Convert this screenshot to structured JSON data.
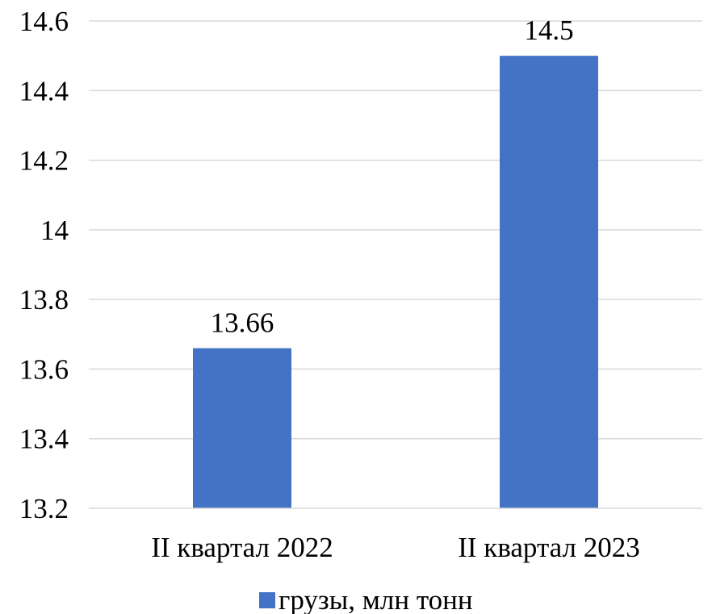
{
  "chart_data": {
    "type": "bar",
    "categories": [
      "II квартал 2022",
      "II квартал 2023"
    ],
    "series": [
      {
        "name": "грузы, млн тонн",
        "values": [
          13.66,
          14.5
        ],
        "color": "#4472C4"
      }
    ],
    "data_labels": [
      "13.66",
      "14.5"
    ],
    "y_ticks": [
      "13.2",
      "13.4",
      "13.6",
      "13.8",
      "14",
      "14.2",
      "14.4",
      "14.6"
    ],
    "ylim": [
      13.2,
      14.6
    ],
    "grid": true,
    "gridline_color": "#D9D9D9",
    "legend_position": "bottom",
    "title": "",
    "xlabel": "",
    "ylabel": ""
  }
}
